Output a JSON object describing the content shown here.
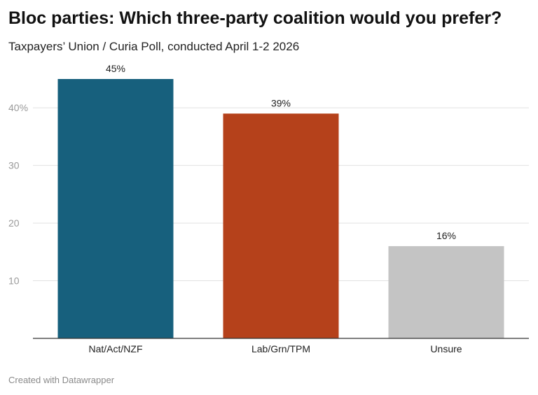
{
  "header": {
    "title": "Bloc parties: Which three-party coalition would you prefer?",
    "subtitle": "Taxpayers’ Union / Curia Poll, conducted April 1-2 2026"
  },
  "footer": {
    "credit": "Created with Datawrapper"
  },
  "chart_data": {
    "type": "bar",
    "title": "Bloc parties: Which three-party coalition would you prefer?",
    "subtitle": "Taxpayers’ Union / Curia Poll, conducted April 1-2 2026",
    "categories": [
      "Nat/Act/NZF",
      "Lab/Grn/TPM",
      "Unsure"
    ],
    "values": [
      45,
      39,
      16
    ],
    "value_labels": [
      "45%",
      "39%",
      "16%"
    ],
    "colors": [
      "#17607d",
      "#b5411b",
      "#c4c4c4"
    ],
    "ylim": [
      0,
      48
    ],
    "yticks": [
      10,
      20,
      30,
      40
    ],
    "ytick_labels": [
      "10",
      "20",
      "30",
      "40%"
    ],
    "grid": true,
    "xlabel": "",
    "ylabel": ""
  }
}
